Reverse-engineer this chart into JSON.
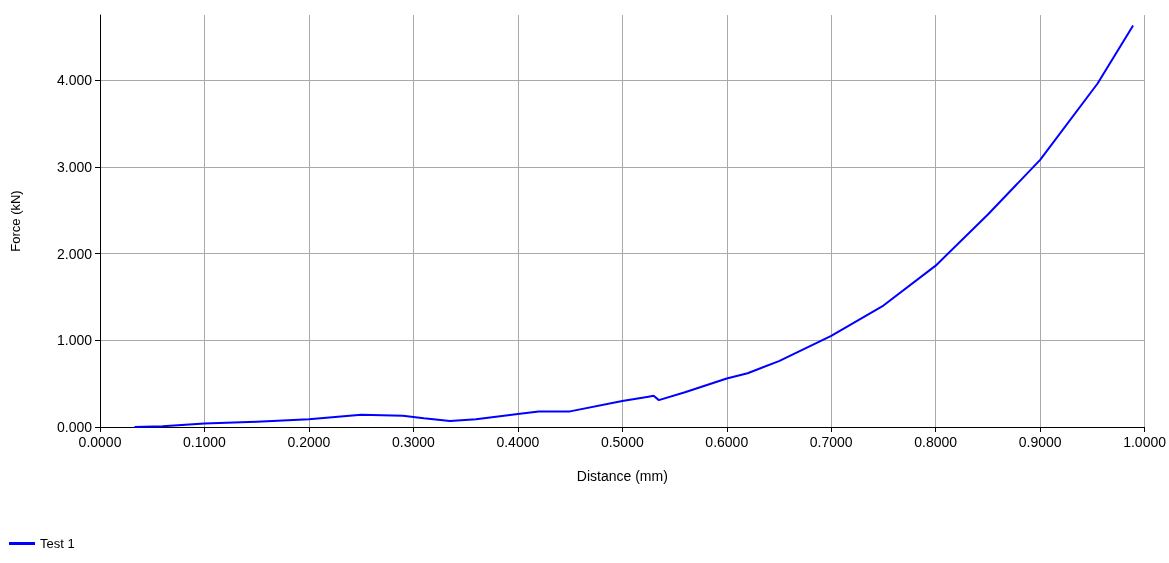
{
  "chart_data": {
    "type": "line",
    "xlabel": "Distance (mm)",
    "ylabel": "Force (kN)",
    "x": [
      0.033,
      0.06,
      0.1,
      0.15,
      0.2,
      0.25,
      0.29,
      0.31,
      0.335,
      0.36,
      0.4,
      0.42,
      0.45,
      0.5,
      0.525,
      0.53,
      0.535,
      0.56,
      0.6,
      0.62,
      0.65,
      0.7,
      0.75,
      0.8,
      0.85,
      0.9,
      0.955,
      0.989
    ],
    "series": [
      {
        "name": "Test 1",
        "color": "#0000ff",
        "values": [
          0.0,
          0.01,
          0.04,
          0.06,
          0.09,
          0.14,
          0.13,
          0.1,
          0.07,
          0.09,
          0.15,
          0.18,
          0.18,
          0.3,
          0.35,
          0.36,
          0.31,
          0.4,
          0.56,
          0.62,
          0.76,
          1.05,
          1.4,
          1.86,
          2.45,
          3.08,
          3.96,
          4.63
        ]
      }
    ],
    "xlim": [
      0,
      1
    ],
    "ylim": [
      0,
      4.75
    ],
    "xticks": [
      {
        "value": 0,
        "label": "0.0000"
      },
      {
        "value": 0.1,
        "label": "0.1000"
      },
      {
        "value": 0.2,
        "label": "0.2000"
      },
      {
        "value": 0.3,
        "label": "0.3000"
      },
      {
        "value": 0.4,
        "label": "0.4000"
      },
      {
        "value": 0.5,
        "label": "0.5000"
      },
      {
        "value": 0.6,
        "label": "0.6000"
      },
      {
        "value": 0.7,
        "label": "0.7000"
      },
      {
        "value": 0.8,
        "label": "0.8000"
      },
      {
        "value": 0.9,
        "label": "0.9000"
      },
      {
        "value": 1,
        "label": "1.0000"
      }
    ],
    "yticks": [
      {
        "value": 0,
        "label": "0.000"
      },
      {
        "value": 1,
        "label": "1.000"
      },
      {
        "value": 2,
        "label": "2.000"
      },
      {
        "value": 3,
        "label": "3.000"
      },
      {
        "value": 4,
        "label": "4.000"
      }
    ],
    "grid": true,
    "legend": "bottom left",
    "marker": "none",
    "line_style": "solid"
  }
}
